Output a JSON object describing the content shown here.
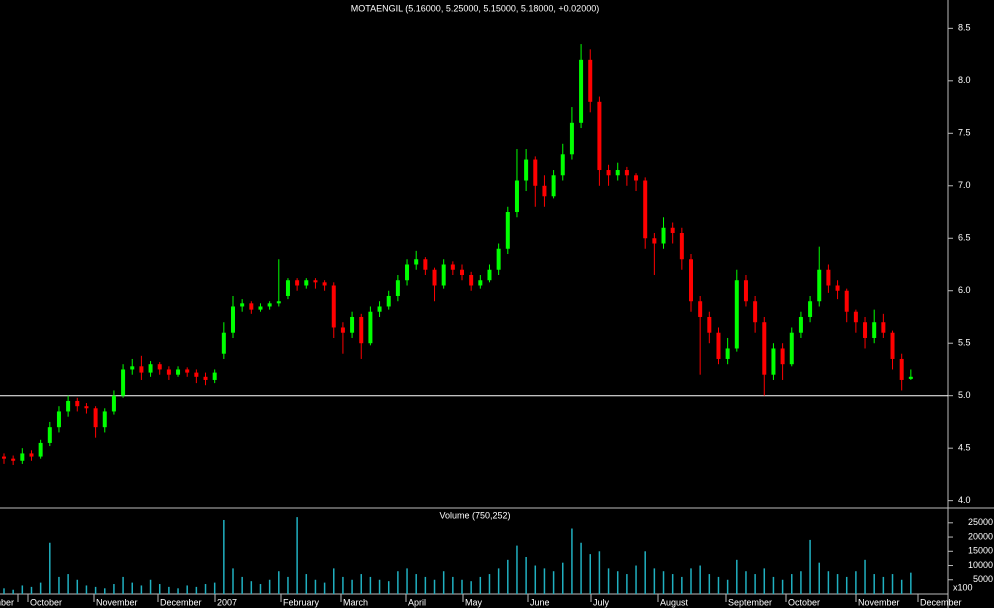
{
  "chart_data": [
    {
      "type": "candlestick",
      "title": "MOTAENGIL (5.16000, 5.25000, 5.15000, 5.18000, +0.02000)",
      "up_color": "#00ff00",
      "down_color": "#ff0000",
      "reference_line": 5,
      "ylim": [
        3.93,
        8.77
      ],
      "yticks": [
        {
          "value": 4,
          "label": "4.0"
        },
        {
          "value": 4.5,
          "label": "4.5"
        },
        {
          "value": 5,
          "label": "5.0"
        },
        {
          "value": 5.5,
          "label": "5.5"
        },
        {
          "value": 6,
          "label": "6.0"
        },
        {
          "value": 6.5,
          "label": "6.5"
        },
        {
          "value": 7,
          "label": "7.0"
        },
        {
          "value": 7.5,
          "label": "7.5"
        },
        {
          "value": 8,
          "label": "8.0"
        },
        {
          "value": 8.5,
          "label": "8.5"
        }
      ],
      "x_labels": [
        "September",
        "October",
        "November",
        "December",
        "2007",
        "February",
        "March",
        "April",
        "May",
        "June",
        "July",
        "August",
        "September",
        "October",
        "November",
        "December"
      ],
      "ohlc": [
        [
          4.42,
          4.45,
          4.35,
          4.4
        ],
        [
          4.4,
          4.43,
          4.34,
          4.38
        ],
        [
          4.38,
          4.5,
          4.35,
          4.45
        ],
        [
          4.45,
          4.48,
          4.38,
          4.42
        ],
        [
          4.42,
          4.58,
          4.4,
          4.55
        ],
        [
          4.55,
          4.75,
          4.52,
          4.7
        ],
        [
          4.7,
          4.9,
          4.65,
          4.85
        ],
        [
          4.85,
          5.0,
          4.8,
          4.95
        ],
        [
          4.95,
          4.98,
          4.85,
          4.9
        ],
        [
          4.9,
          4.93,
          4.83,
          4.88
        ],
        [
          4.88,
          4.9,
          4.6,
          4.7
        ],
        [
          4.7,
          4.88,
          4.65,
          4.85
        ],
        [
          4.85,
          5.05,
          4.82,
          5.0
        ],
        [
          5.0,
          5.3,
          4.98,
          5.25
        ],
        [
          5.25,
          5.35,
          5.2,
          5.28
        ],
        [
          5.28,
          5.38,
          5.15,
          5.22
        ],
        [
          5.22,
          5.33,
          5.18,
          5.3
        ],
        [
          5.3,
          5.32,
          5.2,
          5.25
        ],
        [
          5.25,
          5.28,
          5.15,
          5.2
        ],
        [
          5.2,
          5.28,
          5.18,
          5.25
        ],
        [
          5.25,
          5.27,
          5.18,
          5.22
        ],
        [
          5.22,
          5.25,
          5.12,
          5.18
        ],
        [
          5.18,
          5.22,
          5.1,
          5.15
        ],
        [
          5.15,
          5.25,
          5.12,
          5.22
        ],
        [
          5.4,
          5.7,
          5.35,
          5.6
        ],
        [
          5.6,
          5.95,
          5.55,
          5.85
        ],
        [
          5.85,
          5.92,
          5.8,
          5.88
        ],
        [
          5.88,
          5.9,
          5.78,
          5.82
        ],
        [
          5.82,
          5.88,
          5.8,
          5.85
        ],
        [
          5.85,
          5.9,
          5.82,
          5.88
        ],
        [
          5.88,
          6.3,
          5.85,
          5.9
        ],
        [
          5.95,
          6.12,
          5.92,
          6.1
        ],
        [
          6.1,
          6.12,
          6.0,
          6.05
        ],
        [
          6.05,
          6.12,
          6.02,
          6.1
        ],
        [
          6.1,
          6.12,
          6.02,
          6.08
        ],
        [
          6.08,
          6.1,
          6.0,
          6.05
        ],
        [
          6.05,
          6.08,
          5.55,
          5.65
        ],
        [
          5.65,
          5.7,
          5.4,
          5.6
        ],
        [
          5.6,
          5.8,
          5.55,
          5.75
        ],
        [
          5.75,
          5.78,
          5.35,
          5.5
        ],
        [
          5.5,
          5.85,
          5.48,
          5.8
        ],
        [
          5.8,
          5.9,
          5.75,
          5.85
        ],
        [
          5.85,
          6.0,
          5.82,
          5.95
        ],
        [
          5.95,
          6.15,
          5.9,
          6.1
        ],
        [
          6.1,
          6.3,
          6.05,
          6.25
        ],
        [
          6.25,
          6.38,
          6.2,
          6.3
        ],
        [
          6.3,
          6.32,
          6.15,
          6.2
        ],
        [
          6.2,
          6.22,
          5.9,
          6.05
        ],
        [
          6.05,
          6.3,
          6.02,
          6.25
        ],
        [
          6.25,
          6.28,
          6.15,
          6.2
        ],
        [
          6.2,
          6.25,
          6.1,
          6.15
        ],
        [
          6.15,
          6.18,
          6.0,
          6.05
        ],
        [
          6.05,
          6.15,
          6.02,
          6.1
        ],
        [
          6.1,
          6.25,
          6.08,
          6.2
        ],
        [
          6.2,
          6.45,
          6.15,
          6.4
        ],
        [
          6.4,
          6.8,
          6.35,
          6.75
        ],
        [
          6.75,
          7.35,
          6.7,
          7.05
        ],
        [
          7.05,
          7.35,
          6.95,
          7.25
        ],
        [
          7.25,
          7.28,
          6.8,
          7.0
        ],
        [
          7.0,
          7.1,
          6.8,
          6.9
        ],
        [
          6.9,
          7.15,
          6.88,
          7.1
        ],
        [
          7.1,
          7.4,
          7.05,
          7.3
        ],
        [
          7.3,
          7.75,
          7.25,
          7.6
        ],
        [
          7.6,
          8.35,
          7.55,
          8.2
        ],
        [
          8.2,
          8.3,
          7.7,
          7.8
        ],
        [
          7.8,
          7.85,
          7.0,
          7.15
        ],
        [
          7.15,
          7.2,
          7.0,
          7.1
        ],
        [
          7.1,
          7.22,
          7.05,
          7.15
        ],
        [
          7.15,
          7.18,
          7.0,
          7.1
        ],
        [
          7.1,
          7.12,
          6.95,
          7.05
        ],
        [
          7.05,
          7.08,
          6.4,
          6.5
        ],
        [
          6.5,
          6.55,
          6.15,
          6.45
        ],
        [
          6.45,
          6.7,
          6.4,
          6.6
        ],
        [
          6.6,
          6.65,
          6.45,
          6.55
        ],
        [
          6.55,
          6.6,
          6.2,
          6.3
        ],
        [
          6.3,
          6.35,
          5.8,
          5.9
        ],
        [
          5.9,
          5.95,
          5.2,
          5.75
        ],
        [
          5.75,
          5.8,
          5.5,
          5.6
        ],
        [
          5.6,
          5.65,
          5.3,
          5.35
        ],
        [
          5.35,
          5.55,
          5.3,
          5.45
        ],
        [
          5.45,
          6.2,
          5.42,
          6.1
        ],
        [
          6.1,
          6.15,
          5.85,
          5.9
        ],
        [
          5.9,
          5.95,
          5.6,
          5.7
        ],
        [
          5.7,
          5.75,
          5.0,
          5.2
        ],
        [
          5.2,
          5.5,
          5.15,
          5.45
        ],
        [
          5.45,
          5.5,
          5.15,
          5.3
        ],
        [
          5.3,
          5.65,
          5.28,
          5.6
        ],
        [
          5.6,
          5.8,
          5.55,
          5.75
        ],
        [
          5.75,
          5.95,
          5.7,
          5.9
        ],
        [
          5.9,
          6.42,
          5.85,
          6.2
        ],
        [
          6.2,
          6.25,
          5.98,
          6.05
        ],
        [
          6.05,
          6.1,
          5.92,
          6.0
        ],
        [
          6.0,
          6.02,
          5.7,
          5.8
        ],
        [
          5.8,
          5.82,
          5.6,
          5.7
        ],
        [
          5.7,
          5.75,
          5.45,
          5.55
        ],
        [
          5.55,
          5.82,
          5.5,
          5.7
        ],
        [
          5.7,
          5.78,
          5.55,
          5.6
        ],
        [
          5.6,
          5.62,
          5.25,
          5.35
        ],
        [
          5.35,
          5.4,
          5.05,
          5.15
        ],
        [
          5.16,
          5.25,
          5.15,
          5.18
        ]
      ]
    },
    {
      "type": "bar",
      "title": "Volume (750,252)",
      "unit_label": "x100",
      "color": "#20b0c0",
      "ylim": [
        0,
        29500
      ],
      "yticks": [
        5000,
        10000,
        15000,
        20000,
        25000
      ],
      "values": [
        2000,
        1500,
        3000,
        2500,
        4000,
        18000,
        6000,
        7000,
        5000,
        3000,
        2500,
        2000,
        3500,
        6000,
        4000,
        3000,
        5000,
        3500,
        2500,
        2000,
        3000,
        2500,
        3500,
        4000,
        26000,
        9000,
        6000,
        4500,
        3500,
        5000,
        8000,
        6000,
        27000,
        7000,
        5000,
        4000,
        9000,
        6000,
        5000,
        7000,
        6000,
        5000,
        4500,
        8000,
        9000,
        7000,
        6000,
        5000,
        8000,
        6000,
        5000,
        4500,
        6000,
        7000,
        9000,
        12000,
        17000,
        13000,
        10000,
        9000,
        8000,
        11000,
        23000,
        18000,
        14000,
        15000,
        9000,
        8000,
        7000,
        10000,
        15000,
        9000,
        8000,
        7000,
        6000,
        9000,
        10000,
        7000,
        6000,
        5000,
        12000,
        8000,
        7000,
        9000,
        6000,
        5000,
        7000,
        8000,
        19000,
        11000,
        8000,
        7000,
        6000,
        8000,
        12000,
        7000,
        6000,
        7000,
        5000,
        7500
      ]
    }
  ]
}
